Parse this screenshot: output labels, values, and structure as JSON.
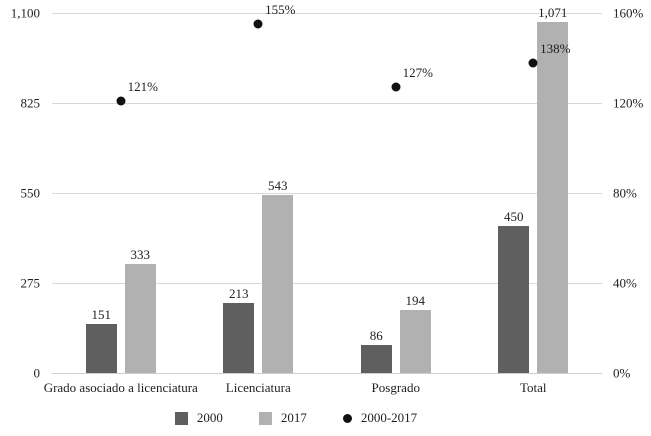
{
  "colors": {
    "series_2000": "#5f5f5f",
    "series_2017": "#b1b1b1",
    "point_series": "#111111",
    "gridline": "#d9d9d9",
    "text": "#1f1f1f",
    "background": "#ffffff"
  },
  "chart_data": {
    "type": "bar",
    "title": "",
    "xlabel": "",
    "ylabel": "",
    "grid": true,
    "legend_position": "bottom",
    "categories": [
      "Grado asociado a licenciatura",
      "Licenciatura",
      "Posgrado",
      "Total"
    ],
    "series": [
      {
        "name": "2000",
        "kind": "bar",
        "axis": "left",
        "color": "#5f5f5f",
        "values": [
          151,
          213,
          86,
          450
        ],
        "labels": [
          "151",
          "213",
          "86",
          "450"
        ]
      },
      {
        "name": "2017",
        "kind": "bar",
        "axis": "left",
        "color": "#b1b1b1",
        "values": [
          333,
          543,
          194,
          1071
        ],
        "labels": [
          "333",
          "543",
          "194",
          "1,071"
        ]
      },
      {
        "name": "2000-2017",
        "kind": "point",
        "axis": "right",
        "color": "#111111",
        "values": [
          121,
          155,
          127,
          138
        ],
        "labels": [
          "121%",
          "155%",
          "127%",
          "138%"
        ]
      }
    ],
    "left_axis": {
      "min": 0,
      "max": 1100,
      "ticks": [
        "1,100",
        "825",
        "550",
        "275",
        "0"
      ],
      "tick_values": [
        1100,
        825,
        550,
        275,
        0
      ]
    },
    "right_axis": {
      "min": 0,
      "max": 160,
      "ticks": [
        "160%",
        "120%",
        "80%",
        "40%",
        "0%"
      ],
      "tick_values": [
        160,
        120,
        80,
        40,
        0
      ]
    },
    "legend": [
      {
        "label": "2000",
        "marker": "square",
        "color": "#5f5f5f"
      },
      {
        "label": "2017",
        "marker": "square",
        "color": "#b1b1b1"
      },
      {
        "label": "2000-2017",
        "marker": "dot",
        "color": "#111111"
      }
    ]
  }
}
